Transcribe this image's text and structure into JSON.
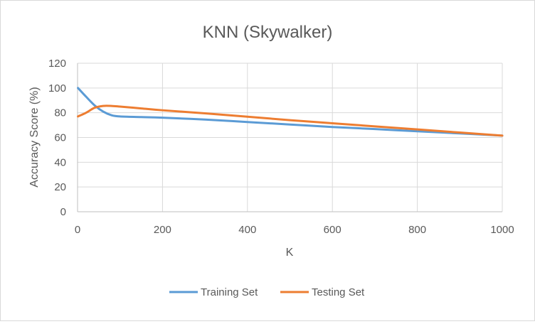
{
  "chart_data": {
    "type": "line",
    "title": "KNN (Skywalker)",
    "xlabel": "K",
    "ylabel": "Accuracy Score (%)",
    "xlim": [
      0,
      1000
    ],
    "ylim": [
      0,
      120
    ],
    "x_ticks": [
      "0",
      "200",
      "400",
      "600",
      "800",
      "1000"
    ],
    "y_ticks": [
      "0",
      "20",
      "40",
      "60",
      "80",
      "100",
      "120"
    ],
    "grid": true,
    "legend_position": "bottom",
    "series": [
      {
        "name": "Training Set",
        "color": "#5b9bd5",
        "points": [
          [
            1,
            100
          ],
          [
            20,
            93
          ],
          [
            40,
            86
          ],
          [
            60,
            81
          ],
          [
            80,
            78
          ],
          [
            100,
            77
          ],
          [
            150,
            76.5
          ],
          [
            200,
            76
          ],
          [
            300,
            74.5
          ],
          [
            400,
            72.5
          ],
          [
            500,
            70.5
          ],
          [
            600,
            68.5
          ],
          [
            700,
            66.8
          ],
          [
            800,
            65
          ],
          [
            900,
            63.3
          ],
          [
            1000,
            61.5
          ]
        ]
      },
      {
        "name": "Testing Set",
        "color": "#ed7d31",
        "points": [
          [
            1,
            77
          ],
          [
            20,
            80
          ],
          [
            40,
            84
          ],
          [
            60,
            85.5
          ],
          [
            80,
            85.5
          ],
          [
            100,
            85
          ],
          [
            150,
            83.5
          ],
          [
            200,
            82
          ],
          [
            300,
            79.5
          ],
          [
            400,
            76.8
          ],
          [
            500,
            74
          ],
          [
            600,
            71.5
          ],
          [
            700,
            69
          ],
          [
            800,
            66.5
          ],
          [
            900,
            64
          ],
          [
            1000,
            61.5
          ]
        ]
      }
    ]
  }
}
